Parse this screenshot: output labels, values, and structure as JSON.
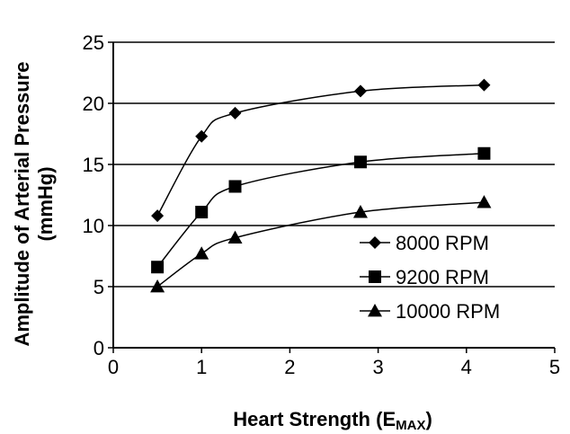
{
  "chart_data": {
    "type": "line",
    "xlabel": "Heart Strength (E",
    "xlabel_sub": "MAX",
    "xlabel_close": ")",
    "ylabel_line1": "Amplitude of Arterial Pressure",
    "ylabel_line2": "(mmHg)",
    "xlim": [
      0,
      5
    ],
    "ylim": [
      0,
      25
    ],
    "xticks": [
      "0",
      "1",
      "2",
      "3",
      "4",
      "5"
    ],
    "yticks": [
      "0",
      "5",
      "10",
      "15",
      "20",
      "25"
    ],
    "grid": "horizontal",
    "legend_position": "bottom-right",
    "series": [
      {
        "name": "8000 RPM",
        "marker": "diamond",
        "color": "#000000",
        "x": [
          0.5,
          1.0,
          1.38,
          2.8,
          4.2
        ],
        "y": [
          10.8,
          17.3,
          19.2,
          21.0,
          21.5
        ]
      },
      {
        "name": "9200 RPM",
        "marker": "square",
        "color": "#000000",
        "x": [
          0.5,
          1.0,
          1.38,
          2.8,
          4.2
        ],
        "y": [
          6.6,
          11.1,
          13.2,
          15.2,
          15.9
        ]
      },
      {
        "name": "10000 RPM",
        "marker": "triangle",
        "color": "#000000",
        "x": [
          0.5,
          1.0,
          1.38,
          2.8,
          4.2
        ],
        "y": [
          5.0,
          7.7,
          9.0,
          11.1,
          11.9
        ]
      }
    ]
  }
}
